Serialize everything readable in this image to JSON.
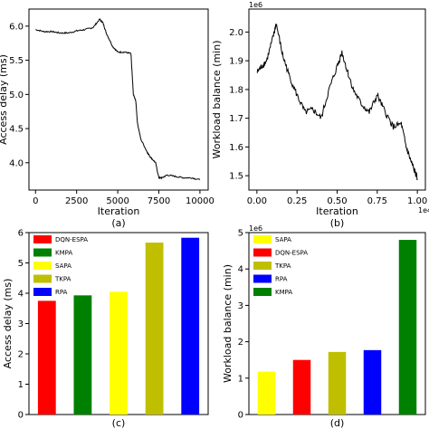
{
  "chart_data": [
    {
      "type": "line",
      "panel_label": "(a)",
      "xlabel": "Iteration",
      "ylabel": "Access delay (ms)",
      "xlim": [
        -400,
        10500
      ],
      "ylim": [
        3.6,
        6.25
      ],
      "xticks": [
        "0",
        "2500",
        "5000",
        "7500",
        "10000"
      ],
      "yticks": [
        "4.0",
        "4.5",
        "5.0",
        "5.5",
        "6.0"
      ],
      "series": [
        {
          "x": [
            0,
            500,
            1000,
            1500,
            2000,
            2500,
            3000,
            3500,
            3900,
            4100,
            4300,
            4700,
            5000,
            5400,
            5800,
            5950,
            6100,
            6200,
            6400,
            6800,
            7000,
            7300,
            7500,
            7700,
            8000,
            8500,
            9000,
            9500,
            10000
          ],
          "y": [
            5.95,
            5.92,
            5.92,
            5.9,
            5.9,
            5.93,
            5.95,
            5.98,
            6.1,
            6.05,
            5.9,
            5.7,
            5.62,
            5.62,
            5.6,
            5.0,
            4.9,
            4.58,
            4.35,
            4.15,
            4.08,
            4.0,
            3.78,
            3.78,
            3.82,
            3.8,
            3.78,
            3.78,
            3.75
          ]
        }
      ]
    },
    {
      "type": "line",
      "panel_label": "(b)",
      "xlabel": "Iteration",
      "ylabel": "Workload balance (min)",
      "y_multiplier": "1e6",
      "x_multiplier": "1e4",
      "xlim": [
        -0.05,
        1.05
      ],
      "ylim": [
        1.45,
        2.08
      ],
      "xticks": [
        "0.00",
        "0.25",
        "0.50",
        "0.75",
        "1.00"
      ],
      "yticks": [
        "1.5",
        "1.6",
        "1.7",
        "1.8",
        "1.9",
        "2.0"
      ],
      "series": [
        {
          "x": [
            0,
            0.03,
            0.06,
            0.1,
            0.12,
            0.16,
            0.2,
            0.25,
            0.3,
            0.35,
            0.4,
            0.45,
            0.5,
            0.53,
            0.56,
            0.6,
            0.65,
            0.7,
            0.75,
            0.8,
            0.85,
            0.9,
            0.93,
            0.96,
            0.98,
            1.0
          ],
          "y": [
            1.86,
            1.88,
            1.9,
            1.98,
            2.03,
            1.92,
            1.85,
            1.78,
            1.72,
            1.73,
            1.7,
            1.8,
            1.88,
            1.93,
            1.87,
            1.8,
            1.75,
            1.72,
            1.78,
            1.72,
            1.67,
            1.68,
            1.6,
            1.55,
            1.52,
            1.49
          ]
        }
      ]
    },
    {
      "type": "bar",
      "panel_label": "(c)",
      "xlabel": "",
      "ylabel": "Access delay (ms)",
      "ylim": [
        0,
        6
      ],
      "yticks": [
        "0",
        "1",
        "2",
        "3",
        "4",
        "5",
        "6"
      ],
      "categories": [
        "DQN-ESPA",
        "KMPA",
        "SAPA",
        "TKPA",
        "RPA"
      ],
      "values": [
        3.75,
        3.93,
        4.05,
        5.67,
        5.83
      ],
      "colors": [
        "#ff0000",
        "#008000",
        "#ffff00",
        "#bfbf00",
        "#0000ff"
      ],
      "legend_position": "top-left"
    },
    {
      "type": "bar",
      "panel_label": "(d)",
      "xlabel": "",
      "ylabel": "Workload balance (min)",
      "y_multiplier": "1e6",
      "ylim": [
        0,
        5
      ],
      "yticks": [
        "0",
        "1",
        "2",
        "3",
        "4",
        "5"
      ],
      "categories": [
        "SAPA",
        "DQN-ESPA",
        "TKPA",
        "RPA",
        "KMPA"
      ],
      "values": [
        1.18,
        1.5,
        1.72,
        1.77,
        4.8
      ],
      "colors": [
        "#ffff00",
        "#ff0000",
        "#bfbf00",
        "#0000ff",
        "#008000"
      ],
      "legend_position": "top-left"
    }
  ]
}
